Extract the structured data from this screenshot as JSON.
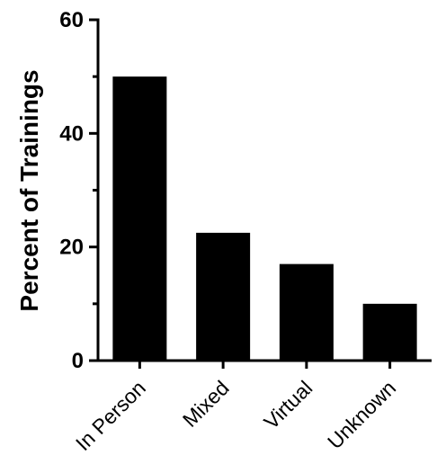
{
  "chart_data": {
    "type": "bar",
    "categories": [
      "In Person",
      "Mixed",
      "Virtual",
      "Unknown"
    ],
    "values": [
      50,
      22.5,
      17,
      10
    ],
    "ylabel": "Percent of Trainings",
    "xlabel": "",
    "ylim": [
      0,
      60
    ],
    "yticks": [
      0,
      20,
      40,
      60
    ],
    "grid": false,
    "legend": "none",
    "bar_color": "#000000"
  }
}
